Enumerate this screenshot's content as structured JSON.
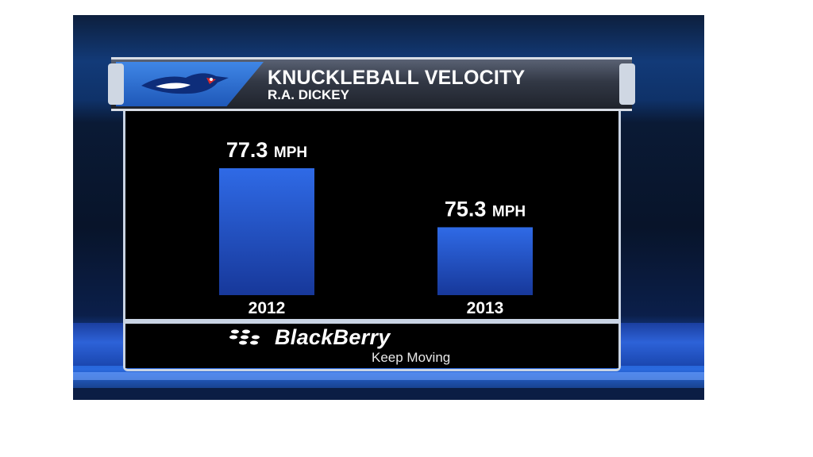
{
  "broadcast": {
    "team_logo": "blue-jays-bird-icon",
    "title": "KNUCKLEBALL VELOCITY",
    "subtitle": "R.A. DICKEY",
    "sponsor": {
      "name": "BlackBerry",
      "tagline": "Keep Moving",
      "logo": "blackberry-dots-icon"
    }
  },
  "colors": {
    "bar": "#2a5ed6",
    "bar_dark": "#17389a",
    "text": "#ffffff",
    "header_accent": "#2f72d8"
  },
  "chart_data": {
    "type": "bar",
    "title": "KNUCKLEBALL VELOCITY",
    "subtitle": "R.A. DICKEY",
    "categories": [
      "2012",
      "2013"
    ],
    "values": [
      77.3,
      75.3
    ],
    "value_labels": [
      "77.3 MPH",
      "75.3 MPH"
    ],
    "unit": "MPH",
    "xlabel": "",
    "ylabel": "",
    "ylim": [
      73,
      78
    ],
    "grid": false,
    "legend": "none"
  }
}
